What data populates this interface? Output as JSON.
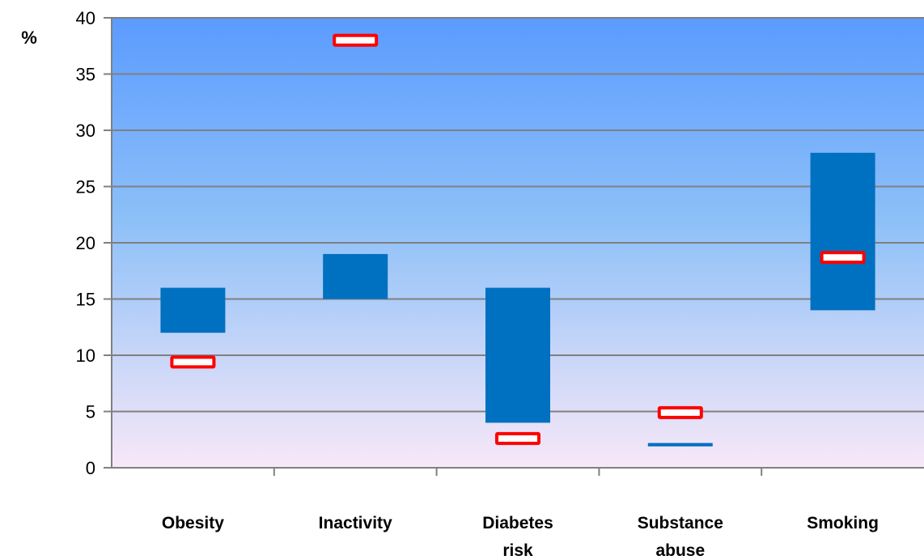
{
  "chart_data": {
    "type": "bar",
    "ylabel": "%",
    "ylim": [
      0,
      40
    ],
    "yticks": [
      0,
      5,
      10,
      15,
      20,
      25,
      30,
      35,
      40
    ],
    "grid": true,
    "categories": [
      [
        "Obesity"
      ],
      [
        "Inactivity"
      ],
      [
        "Diabetes",
        "risk"
      ],
      [
        "Substance",
        "abuse"
      ],
      [
        "Smoking"
      ]
    ],
    "ranges": [
      {
        "low": 12,
        "high": 16
      },
      {
        "low": 15,
        "high": 19
      },
      {
        "low": 4,
        "high": 16
      },
      {
        "low": 1.9,
        "high": 2.2
      },
      {
        "low": 14,
        "high": 28
      }
    ],
    "markers": [
      9.4,
      38,
      2.6,
      4.9,
      18.7
    ],
    "colors": {
      "bar": "#0070C0",
      "marker_stroke": "#FF0000",
      "marker_fill": "#FFFFFF",
      "bg_top": "#5B9BFF",
      "bg_bottom": "#F8E8F8",
      "grid": "#808080"
    }
  }
}
